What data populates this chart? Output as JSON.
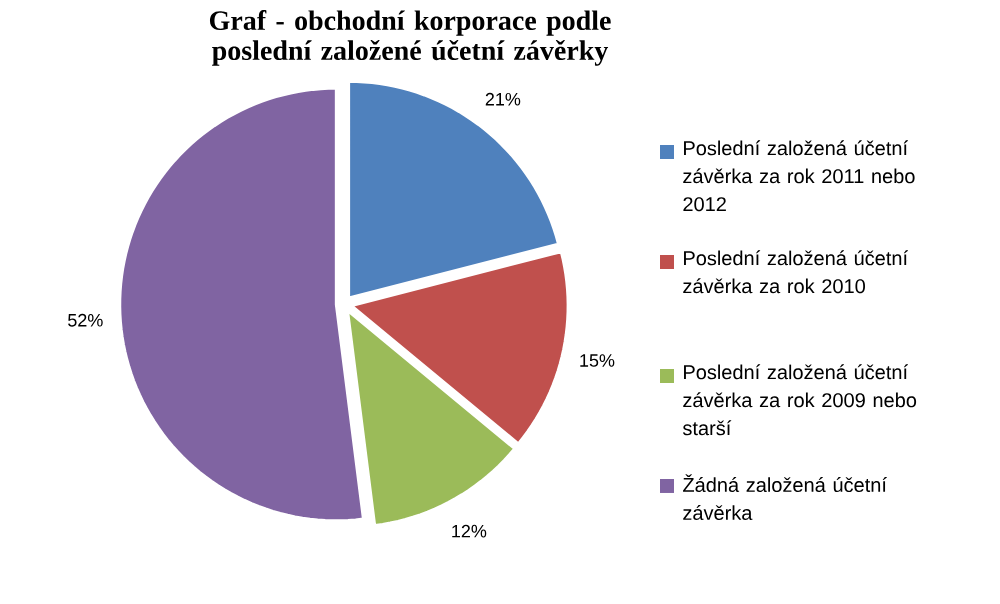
{
  "chart_data": {
    "type": "pie",
    "title": "Graf - obchodní korporace podle poslední založené účetní závěrky",
    "categories": [
      "Poslední založená účetní závěrka za rok 2011 nebo 2012",
      "Poslední založená účetní závěrka za rok 2010",
      "Poslední založená účetní závěrka za rok 2009 nebo starší",
      "Žádná založená účetní závěrka"
    ],
    "values": [
      21,
      15,
      12,
      52
    ],
    "colors": [
      "#4f81bd",
      "#c0504d",
      "#9bbb59",
      "#8064a2"
    ],
    "value_labels": [
      "21%",
      "15%",
      "12%",
      "52%"
    ],
    "legend": "right"
  }
}
